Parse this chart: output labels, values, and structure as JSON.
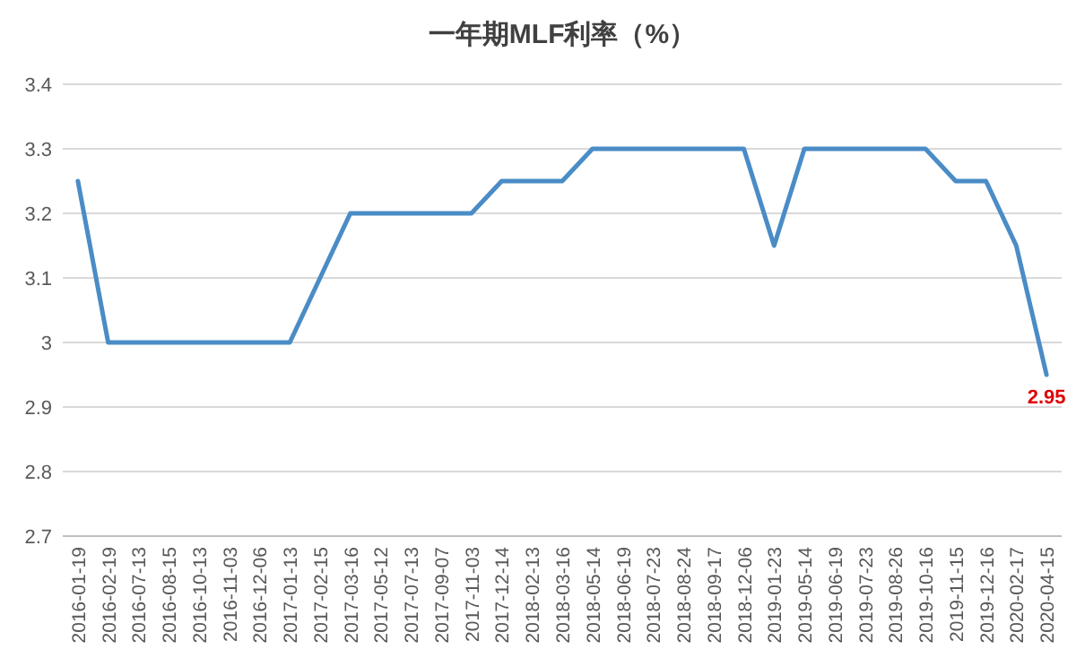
{
  "chart_data": {
    "type": "line",
    "title": "一年期MLF利率（%）",
    "categories": [
      "2016-01-19",
      "2016-02-19",
      "2016-07-13",
      "2016-08-15",
      "2016-10-13",
      "2016-11-03",
      "2016-12-06",
      "2017-01-13",
      "2017-02-15",
      "2017-03-16",
      "2017-05-12",
      "2017-07-13",
      "2017-09-07",
      "2017-11-03",
      "2017-12-14",
      "2018-02-13",
      "2018-03-16",
      "2018-05-14",
      "2018-06-19",
      "2018-07-23",
      "2018-08-24",
      "2018-09-17",
      "2018-12-06",
      "2019-01-23",
      "2019-05-14",
      "2019-06-19",
      "2019-07-23",
      "2019-08-26",
      "2019-10-16",
      "2019-11-15",
      "2019-12-16",
      "2020-02-17",
      "2020-04-15"
    ],
    "series": [
      {
        "color": "#4a8cc6",
        "values": [
          3.25,
          3.0,
          3.0,
          3.0,
          3.0,
          3.0,
          3.0,
          3.0,
          3.1,
          3.2,
          3.2,
          3.2,
          3.2,
          3.2,
          3.25,
          3.25,
          3.25,
          3.3,
          3.3,
          3.3,
          3.3,
          3.3,
          3.3,
          3.15,
          3.3,
          3.3,
          3.3,
          3.3,
          3.3,
          3.25,
          3.25,
          3.15,
          2.95
        ],
        "value_labels": [
          null,
          null,
          null,
          null,
          null,
          null,
          null,
          null,
          null,
          null,
          null,
          null,
          null,
          null,
          null,
          null,
          null,
          null,
          null,
          null,
          null,
          null,
          null,
          null,
          null,
          null,
          null,
          null,
          null,
          null,
          null,
          null,
          "2.95"
        ]
      }
    ],
    "ylim": [
      2.7,
      3.4
    ],
    "yticks": [
      2.7,
      2.8,
      2.9,
      3,
      3.1,
      3.2,
      3.3,
      3.4
    ],
    "grid": "y"
  }
}
